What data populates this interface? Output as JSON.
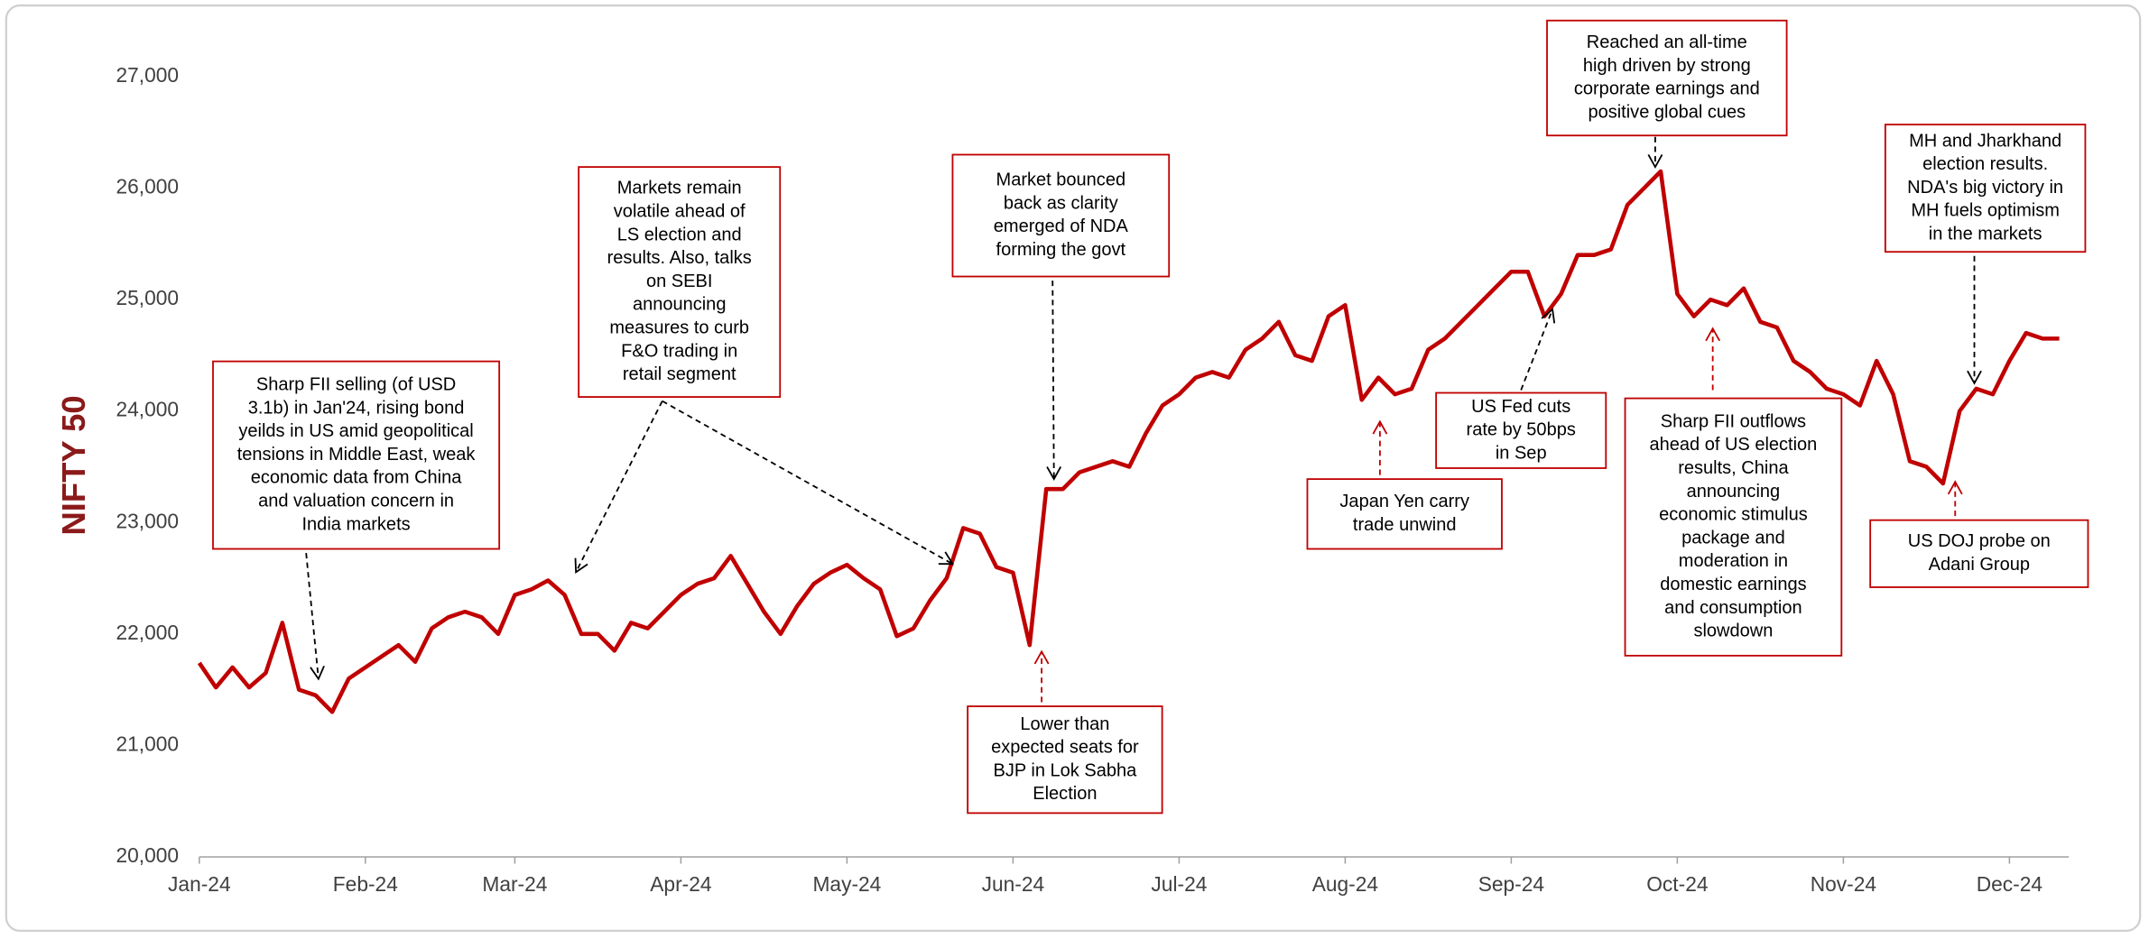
{
  "chart_data": {
    "type": "line",
    "ylabel": "NIFTY 50",
    "color": "#c00000",
    "ylim": [
      20000,
      27000
    ],
    "yticks": [
      {
        "value": 20000,
        "label": "20,000"
      },
      {
        "value": 21000,
        "label": "21,000"
      },
      {
        "value": 22000,
        "label": "22,000"
      },
      {
        "value": 23000,
        "label": "23,000"
      },
      {
        "value": 24000,
        "label": "24,000"
      },
      {
        "value": 25000,
        "label": "25,000"
      },
      {
        "value": 26000,
        "label": "26,000"
      },
      {
        "value": 27000,
        "label": "27,000"
      }
    ],
    "categories": [
      "Jan-24",
      null,
      null,
      null,
      null,
      null,
      null,
      null,
      null,
      null,
      "Feb-24",
      null,
      null,
      null,
      null,
      null,
      null,
      null,
      null,
      "Mar-24",
      null,
      null,
      null,
      null,
      null,
      null,
      null,
      null,
      null,
      "Apr-24",
      null,
      null,
      null,
      null,
      null,
      null,
      null,
      null,
      null,
      "May-24",
      null,
      null,
      null,
      null,
      null,
      null,
      null,
      null,
      null,
      "Jun-24",
      null,
      null,
      null,
      null,
      null,
      null,
      null,
      null,
      null,
      "Jul-24",
      null,
      null,
      null,
      null,
      null,
      null,
      null,
      null,
      null,
      "Aug-24",
      null,
      null,
      null,
      null,
      null,
      null,
      null,
      null,
      null,
      "Sep-24",
      null,
      null,
      null,
      null,
      null,
      null,
      null,
      null,
      null,
      "Oct-24",
      null,
      null,
      null,
      null,
      null,
      null,
      null,
      null,
      null,
      "Nov-24",
      null,
      null,
      null,
      null,
      null,
      null,
      null,
      null,
      null,
      "Dec-24",
      null,
      null,
      null
    ],
    "values": [
      21740,
      21520,
      21700,
      21520,
      21650,
      22100,
      21500,
      21450,
      21300,
      21600,
      21700,
      21800,
      21900,
      21750,
      22050,
      22150,
      22200,
      22150,
      22000,
      22350,
      22400,
      22480,
      22350,
      22000,
      22000,
      21850,
      22100,
      22050,
      22200,
      22350,
      22450,
      22500,
      22700,
      22450,
      22200,
      22000,
      22250,
      22450,
      22550,
      22620,
      22500,
      22400,
      21980,
      22050,
      22300,
      22500,
      22950,
      22900,
      22600,
      22550,
      21900,
      23300,
      23300,
      23450,
      23500,
      23550,
      23500,
      23800,
      24050,
      24150,
      24300,
      24350,
      24300,
      24550,
      24650,
      24800,
      24500,
      24450,
      24850,
      24950,
      24100,
      24300,
      24150,
      24200,
      24550,
      24650,
      24800,
      24950,
      25100,
      25250,
      25250,
      24850,
      25050,
      25400,
      25400,
      25450,
      25850,
      26000,
      26150,
      25050,
      24850,
      25000,
      24950,
      25100,
      24800,
      24750,
      24450,
      24350,
      24200,
      24150,
      24050,
      24450,
      24150,
      23550,
      23500,
      23350,
      24000,
      24200,
      24150,
      24450,
      24700,
      24650,
      24650
    ],
    "annotations": [
      [
        "Sharp FII selling (of USD",
        "3.1b) in Jan'24, rising bond",
        "yeilds in US amid geopolitical",
        "tensions in Middle East, weak",
        "economic data from China",
        "and valuation concern in",
        "India markets"
      ],
      [
        "Markets remain",
        "volatile ahead of",
        "LS election and",
        "results. Also, talks",
        "on SEBI",
        "announcing",
        "measures to curb",
        "F&O trading in",
        "retail segment"
      ],
      [
        "Market bounced",
        "back as clarity",
        "emerged of NDA",
        "forming the govt"
      ],
      [
        "Lower than",
        "expected seats for",
        "BJP in Lok Sabha",
        "Election"
      ],
      [
        "Japan Yen carry",
        "trade unwind"
      ],
      [
        "US Fed cuts",
        "rate by 50bps",
        "in Sep"
      ],
      [
        "Reached an all-time",
        "high driven by strong",
        "corporate earnings and",
        "positive global cues"
      ],
      [
        "Sharp FII outflows",
        "ahead of US election",
        "results, China",
        "announcing",
        "economic stimulus",
        "package  and",
        "moderation in",
        "domestic earnings",
        "and consumption",
        "slowdown"
      ],
      [
        "MH and Jharkhand",
        "election results.",
        "NDA's big victory in",
        "MH fuels optimism",
        "in the markets"
      ],
      [
        "US DOJ probe on",
        "Adani Group"
      ]
    ]
  }
}
